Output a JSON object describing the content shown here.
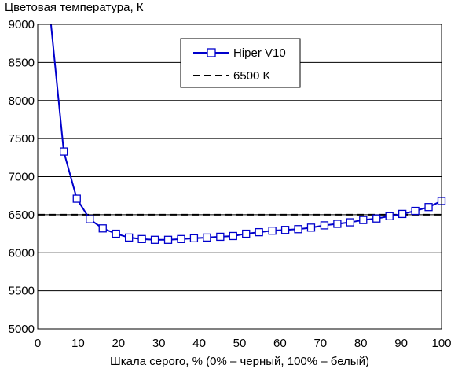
{
  "chart_data": {
    "type": "line",
    "title": "",
    "ylabel": "Цветовая температура, К",
    "xlabel": "Шкала серого, % (0% – черный, 100% – белый)",
    "xlim": [
      0,
      100
    ],
    "ylim": [
      5000,
      9000
    ],
    "x_ticks": [
      "0",
      "10",
      "20",
      "30",
      "40",
      "50",
      "60",
      "70",
      "80",
      "90",
      "100"
    ],
    "y_ticks": [
      "5000",
      "5500",
      "6000",
      "6500",
      "7000",
      "7500",
      "8000",
      "8500",
      "9000"
    ],
    "grid": "horizontal",
    "legend_position": "top-center",
    "series": [
      {
        "name": "Hiper V10",
        "color": "#0000cc",
        "marker": "open-square",
        "x": [
          3.2,
          6.45,
          9.68,
          12.9,
          16.1,
          19.4,
          22.6,
          25.8,
          29.0,
          32.3,
          35.5,
          38.7,
          41.9,
          45.2,
          48.4,
          51.6,
          54.8,
          58.1,
          61.3,
          64.5,
          67.7,
          71.0,
          74.2,
          77.4,
          80.6,
          83.9,
          87.1,
          90.3,
          93.5,
          96.8,
          100
        ],
        "y": [
          9050,
          7330,
          6710,
          6440,
          6320,
          6250,
          6200,
          6180,
          6170,
          6170,
          6180,
          6190,
          6200,
          6210,
          6220,
          6250,
          6270,
          6290,
          6300,
          6310,
          6330,
          6360,
          6380,
          6400,
          6430,
          6450,
          6480,
          6510,
          6550,
          6600,
          6680
        ],
        "markers_from_index": 1
      },
      {
        "name": "6500 K",
        "color": "#000000",
        "style": "dashed",
        "x": [
          0,
          100
        ],
        "y": [
          6500,
          6500
        ]
      }
    ]
  }
}
